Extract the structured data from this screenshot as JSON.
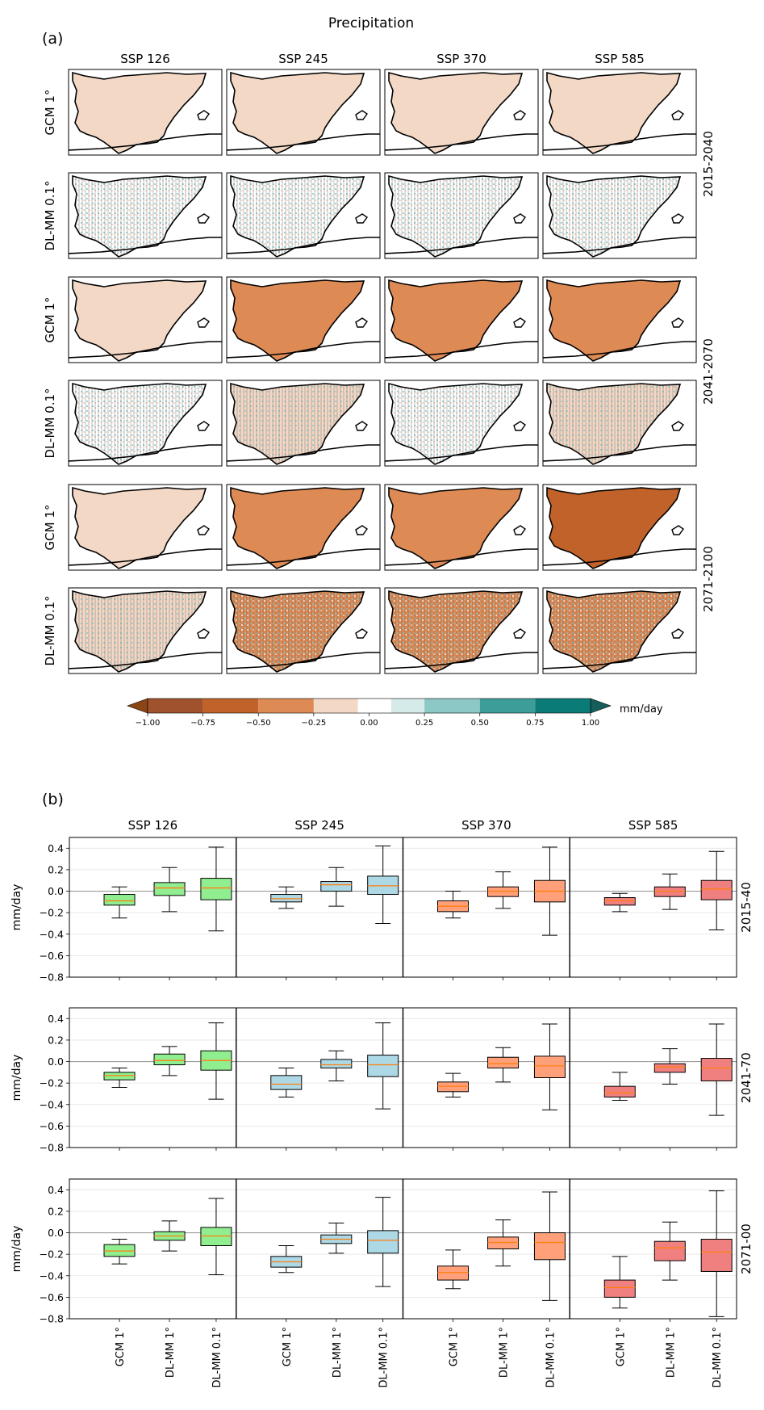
{
  "panel_a": {
    "title": "Precipitation",
    "label": "(a)",
    "columns": [
      "SSP 126",
      "SSP 245",
      "SSP 370",
      "SSP 585"
    ],
    "row_labels": [
      "GCM 1°",
      "DL-MM 0.1°",
      "GCM 1°",
      "DL-MM 0.1°",
      "GCM 1°",
      "DL-MM 0.1°"
    ],
    "period_labels": [
      "2015-2040",
      "2041-2070",
      "2071-2100"
    ],
    "colorbar": {
      "ticks": [
        "−1.00",
        "−0.75",
        "−0.50",
        "−0.25",
        "0.00",
        "0.25",
        "0.50",
        "0.75",
        "1.00"
      ],
      "unit": "mm/day",
      "colors": [
        "#a0522d",
        "#c1622a",
        "#dd8a55",
        "#f3d8c6",
        "#ffffff",
        "#d5ebe9",
        "#8cc8c5",
        "#3d9e99",
        "#0b7b77"
      ]
    },
    "dominant_level": [
      [
        -0.25,
        -0.25,
        -0.25,
        -0.25
      ],
      [
        0,
        0,
        0,
        0
      ],
      [
        -0.25,
        -0.5,
        -0.5,
        -0.5
      ],
      [
        0,
        -0.25,
        0,
        -0.25
      ],
      [
        -0.25,
        -0.5,
        -0.5,
        -0.75
      ],
      [
        -0.25,
        -0.5,
        -0.5,
        -0.5
      ]
    ]
  },
  "chart_data": {
    "type": "box",
    "label": "(b)",
    "columns": [
      "SSP 126",
      "SSP 245",
      "SSP 370",
      "SSP 585"
    ],
    "periods": [
      "2015-40",
      "2041-70",
      "2071-00"
    ],
    "categories": [
      "GCM 1°",
      "DL-MM 1°",
      "DL-MM 0.1°"
    ],
    "ylabel": "mm/day",
    "ylim": [
      -0.8,
      0.5
    ],
    "yticks": [
      "0.4",
      "0.2",
      "0.0",
      "−0.2",
      "−0.4",
      "−0.6",
      "−0.8"
    ],
    "ytick_values": [
      0.4,
      0.2,
      0.0,
      -0.2,
      -0.4,
      -0.6,
      -0.8
    ],
    "grid": true,
    "colors": {
      "SSP 126": "#90ee90",
      "SSP 245": "#add8e6",
      "SSP 370": "#ffa07a",
      "SSP 585": "#f08080"
    },
    "median_color": "#ff7f0e",
    "boxes": [
      [
        [
          [
            -0.25,
            -0.13,
            -0.09,
            -0.03,
            0.04
          ],
          [
            -0.19,
            -0.04,
            0.03,
            0.08,
            0.22
          ],
          [
            -0.37,
            -0.08,
            0.03,
            0.12,
            0.41
          ]
        ],
        [
          [
            -0.16,
            -0.1,
            -0.07,
            -0.03,
            0.04
          ],
          [
            -0.14,
            0.0,
            0.06,
            0.09,
            0.22
          ],
          [
            -0.3,
            -0.03,
            0.05,
            0.14,
            0.42
          ]
        ],
        [
          [
            -0.25,
            -0.19,
            -0.14,
            -0.09,
            0.0
          ],
          [
            -0.16,
            -0.05,
            0.0,
            0.04,
            0.18
          ],
          [
            -0.41,
            -0.1,
            0.0,
            0.1,
            0.41
          ]
        ],
        [
          [
            -0.19,
            -0.13,
            -0.09,
            -0.06,
            -0.02
          ],
          [
            -0.17,
            -0.05,
            0.0,
            0.04,
            0.16
          ],
          [
            -0.36,
            -0.08,
            0.02,
            0.1,
            0.37
          ]
        ]
      ],
      [
        [
          [
            -0.24,
            -0.17,
            -0.13,
            -0.1,
            -0.06
          ],
          [
            -0.13,
            -0.03,
            0.01,
            0.07,
            0.14
          ],
          [
            -0.35,
            -0.08,
            0.01,
            0.1,
            0.36
          ]
        ],
        [
          [
            -0.33,
            -0.26,
            -0.21,
            -0.13,
            -0.06
          ],
          [
            -0.18,
            -0.06,
            -0.03,
            0.02,
            0.1
          ],
          [
            -0.44,
            -0.14,
            -0.03,
            0.06,
            0.36
          ]
        ],
        [
          [
            -0.33,
            -0.28,
            -0.23,
            -0.19,
            -0.11
          ],
          [
            -0.19,
            -0.06,
            -0.02,
            0.04,
            0.13
          ],
          [
            -0.45,
            -0.15,
            -0.04,
            0.05,
            0.35
          ]
        ],
        [
          [
            -0.36,
            -0.33,
            -0.29,
            -0.23,
            -0.1
          ],
          [
            -0.21,
            -0.1,
            -0.05,
            -0.02,
            0.12
          ],
          [
            -0.5,
            -0.18,
            -0.06,
            0.03,
            0.35
          ]
        ]
      ],
      [
        [
          [
            -0.29,
            -0.22,
            -0.17,
            -0.11,
            -0.06
          ],
          [
            -0.17,
            -0.07,
            -0.03,
            0.01,
            0.11
          ],
          [
            -0.39,
            -0.12,
            -0.03,
            0.05,
            0.32
          ]
        ],
        [
          [
            -0.37,
            -0.32,
            -0.27,
            -0.22,
            -0.12
          ],
          [
            -0.19,
            -0.1,
            -0.06,
            -0.02,
            0.09
          ],
          [
            -0.5,
            -0.19,
            -0.07,
            0.02,
            0.33
          ]
        ],
        [
          [
            -0.52,
            -0.44,
            -0.37,
            -0.31,
            -0.16
          ],
          [
            -0.31,
            -0.15,
            -0.09,
            -0.04,
            0.12
          ],
          [
            -0.63,
            -0.25,
            -0.09,
            0.0,
            0.38
          ]
        ],
        [
          [
            -0.7,
            -0.6,
            -0.51,
            -0.44,
            -0.22
          ],
          [
            -0.44,
            -0.26,
            -0.14,
            -0.08,
            0.1
          ],
          [
            -0.78,
            -0.36,
            -0.18,
            -0.06,
            0.39
          ]
        ]
      ]
    ]
  }
}
